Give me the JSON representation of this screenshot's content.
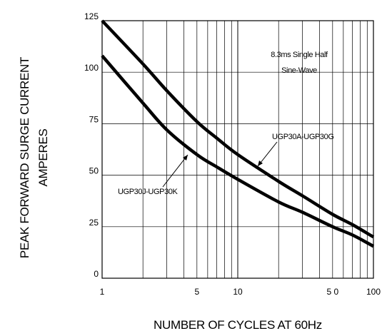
{
  "chart_data": {
    "type": "line",
    "xlabel": "NUMBER OF CYCLES AT 60Hz",
    "ylabel_line1": "PEAK FORWARD SURGE CURRENT",
    "ylabel_line2": "AMPERES",
    "x_scale": "log",
    "xlim": [
      1,
      100
    ],
    "ylim": [
      0,
      125
    ],
    "grid": true,
    "x_ticks": [
      {
        "value": 1,
        "label": "1"
      },
      {
        "value": 5,
        "label": "5"
      },
      {
        "value": 10,
        "label": "10"
      },
      {
        "value": 50,
        "label": "5 0"
      },
      {
        "value": 100,
        "label": "100"
      }
    ],
    "y_ticks": [
      {
        "value": 0,
        "label": "0"
      },
      {
        "value": 25,
        "label": "25"
      },
      {
        "value": 50,
        "label": "50"
      },
      {
        "value": 75,
        "label": "75"
      },
      {
        "value": 100,
        "label": "100"
      },
      {
        "value": 125,
        "label": "125"
      }
    ],
    "annotation_line1": "8.3ms Single Half",
    "annotation_line2": "Sine-Wave",
    "series": [
      {
        "name": "UGP30A-UGP30G",
        "color": "#000000",
        "x": [
          1,
          2,
          3,
          5,
          7,
          10,
          20,
          30,
          50,
          70,
          100
        ],
        "y": [
          125,
          104,
          91,
          76,
          68,
          60,
          47,
          40,
          31,
          26,
          20
        ]
      },
      {
        "name": "UGP30J-UGP30K",
        "color": "#000000",
        "x": [
          1,
          2,
          3,
          5,
          7,
          10,
          20,
          30,
          50,
          70,
          100
        ],
        "y": [
          108,
          85,
          72,
          60,
          54,
          48,
          37,
          32,
          25,
          21,
          15.5
        ]
      }
    ]
  }
}
